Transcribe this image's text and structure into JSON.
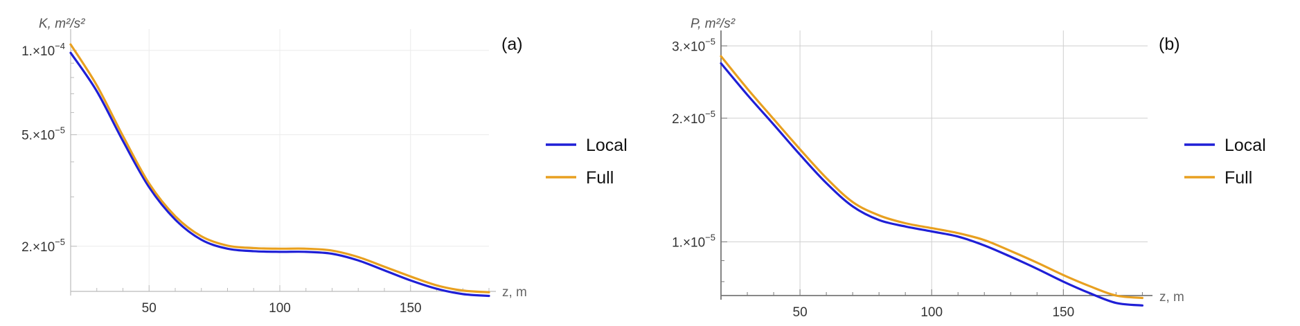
{
  "chart_data": [
    {
      "type": "line",
      "panel_label": "(a)",
      "ylabel_symbol": "K,",
      "ylabel_unit": "m²/s²",
      "xlabel": "z, m",
      "y_scale": "log",
      "xlim": [
        20,
        180
      ],
      "ylim": [
        1.38e-05,
        0.00011
      ],
      "x_ticks": [
        {
          "value": 50,
          "label": "50"
        },
        {
          "value": 100,
          "label": "100"
        },
        {
          "value": 150,
          "label": "150"
        }
      ],
      "y_ticks": [
        {
          "value": 0.0001,
          "base": "1.×10",
          "exp": "−4"
        },
        {
          "value": 5e-05,
          "base": "5.×10",
          "exp": "−5"
        },
        {
          "value": 2e-05,
          "base": "2.×10",
          "exp": "−5"
        }
      ],
      "grid": true,
      "legend_position": "right",
      "series": [
        {
          "name": "Local",
          "color": "#1f1fd6",
          "x": [
            20,
            30,
            40,
            50,
            60,
            70,
            80,
            90,
            100,
            110,
            120,
            130,
            140,
            150,
            160,
            170,
            180
          ],
          "y": [
            9.8e-05,
            7.15e-05,
            4.75e-05,
            3.25e-05,
            2.49e-05,
            2.11e-05,
            1.96e-05,
            1.92e-05,
            1.91e-05,
            1.91e-05,
            1.88e-05,
            1.78e-05,
            1.64e-05,
            1.51e-05,
            1.41e-05,
            1.35e-05,
            1.33e-05
          ]
        },
        {
          "name": "Full",
          "color": "#e8a020",
          "x": [
            20,
            30,
            40,
            50,
            60,
            70,
            80,
            90,
            100,
            110,
            120,
            130,
            140,
            150,
            160,
            170,
            180
          ],
          "y": [
            0.000105,
            7.5e-05,
            4.95e-05,
            3.35e-05,
            2.56e-05,
            2.17e-05,
            2.01e-05,
            1.97e-05,
            1.96e-05,
            1.96e-05,
            1.93e-05,
            1.83e-05,
            1.69e-05,
            1.56e-05,
            1.45e-05,
            1.39e-05,
            1.37e-05
          ]
        }
      ]
    },
    {
      "type": "line",
      "panel_label": "(b)",
      "ylabel_symbol": "P,",
      "ylabel_unit": "m²/s²",
      "xlabel": "z, m",
      "y_scale": "log",
      "xlim": [
        20,
        182
      ],
      "ylim": [
        7.4e-06,
        3.05e-05
      ],
      "x_ticks": [
        {
          "value": 50,
          "label": "50"
        },
        {
          "value": 100,
          "label": "100"
        },
        {
          "value": 150,
          "label": "150"
        }
      ],
      "y_ticks": [
        {
          "value": 3e-05,
          "base": "3.×10",
          "exp": "−5"
        },
        {
          "value": 2e-05,
          "base": "2.×10",
          "exp": "−5"
        },
        {
          "value": 1e-05,
          "base": "1.×10",
          "exp": "−5"
        }
      ],
      "grid": true,
      "legend_position": "right",
      "series": [
        {
          "name": "Local",
          "color": "#1f1fd6",
          "x": [
            20,
            30,
            40,
            50,
            60,
            70,
            80,
            90,
            100,
            110,
            120,
            130,
            140,
            150,
            160,
            170,
            180
          ],
          "y": [
            2.72e-05,
            2.28e-05,
            1.93e-05,
            1.63e-05,
            1.39e-05,
            1.22e-05,
            1.13e-05,
            1.09e-05,
            1.06e-05,
            1.03e-05,
            9.8e-06,
            9.2e-06,
            8.6e-06,
            8e-06,
            7.5e-06,
            7.1e-06,
            7e-06
          ]
        },
        {
          "name": "Full",
          "color": "#e8a020",
          "x": [
            20,
            30,
            40,
            50,
            60,
            70,
            80,
            90,
            100,
            110,
            120,
            130,
            140,
            150,
            160,
            170,
            180
          ],
          "y": [
            2.83e-05,
            2.36e-05,
            1.99e-05,
            1.68e-05,
            1.43e-05,
            1.25e-05,
            1.16e-05,
            1.11e-05,
            1.08e-05,
            1.05e-05,
            1.01e-05,
            9.5e-06,
            8.9e-06,
            8.3e-06,
            7.8e-06,
            7.4e-06,
            7.3e-06
          ]
        }
      ]
    }
  ]
}
